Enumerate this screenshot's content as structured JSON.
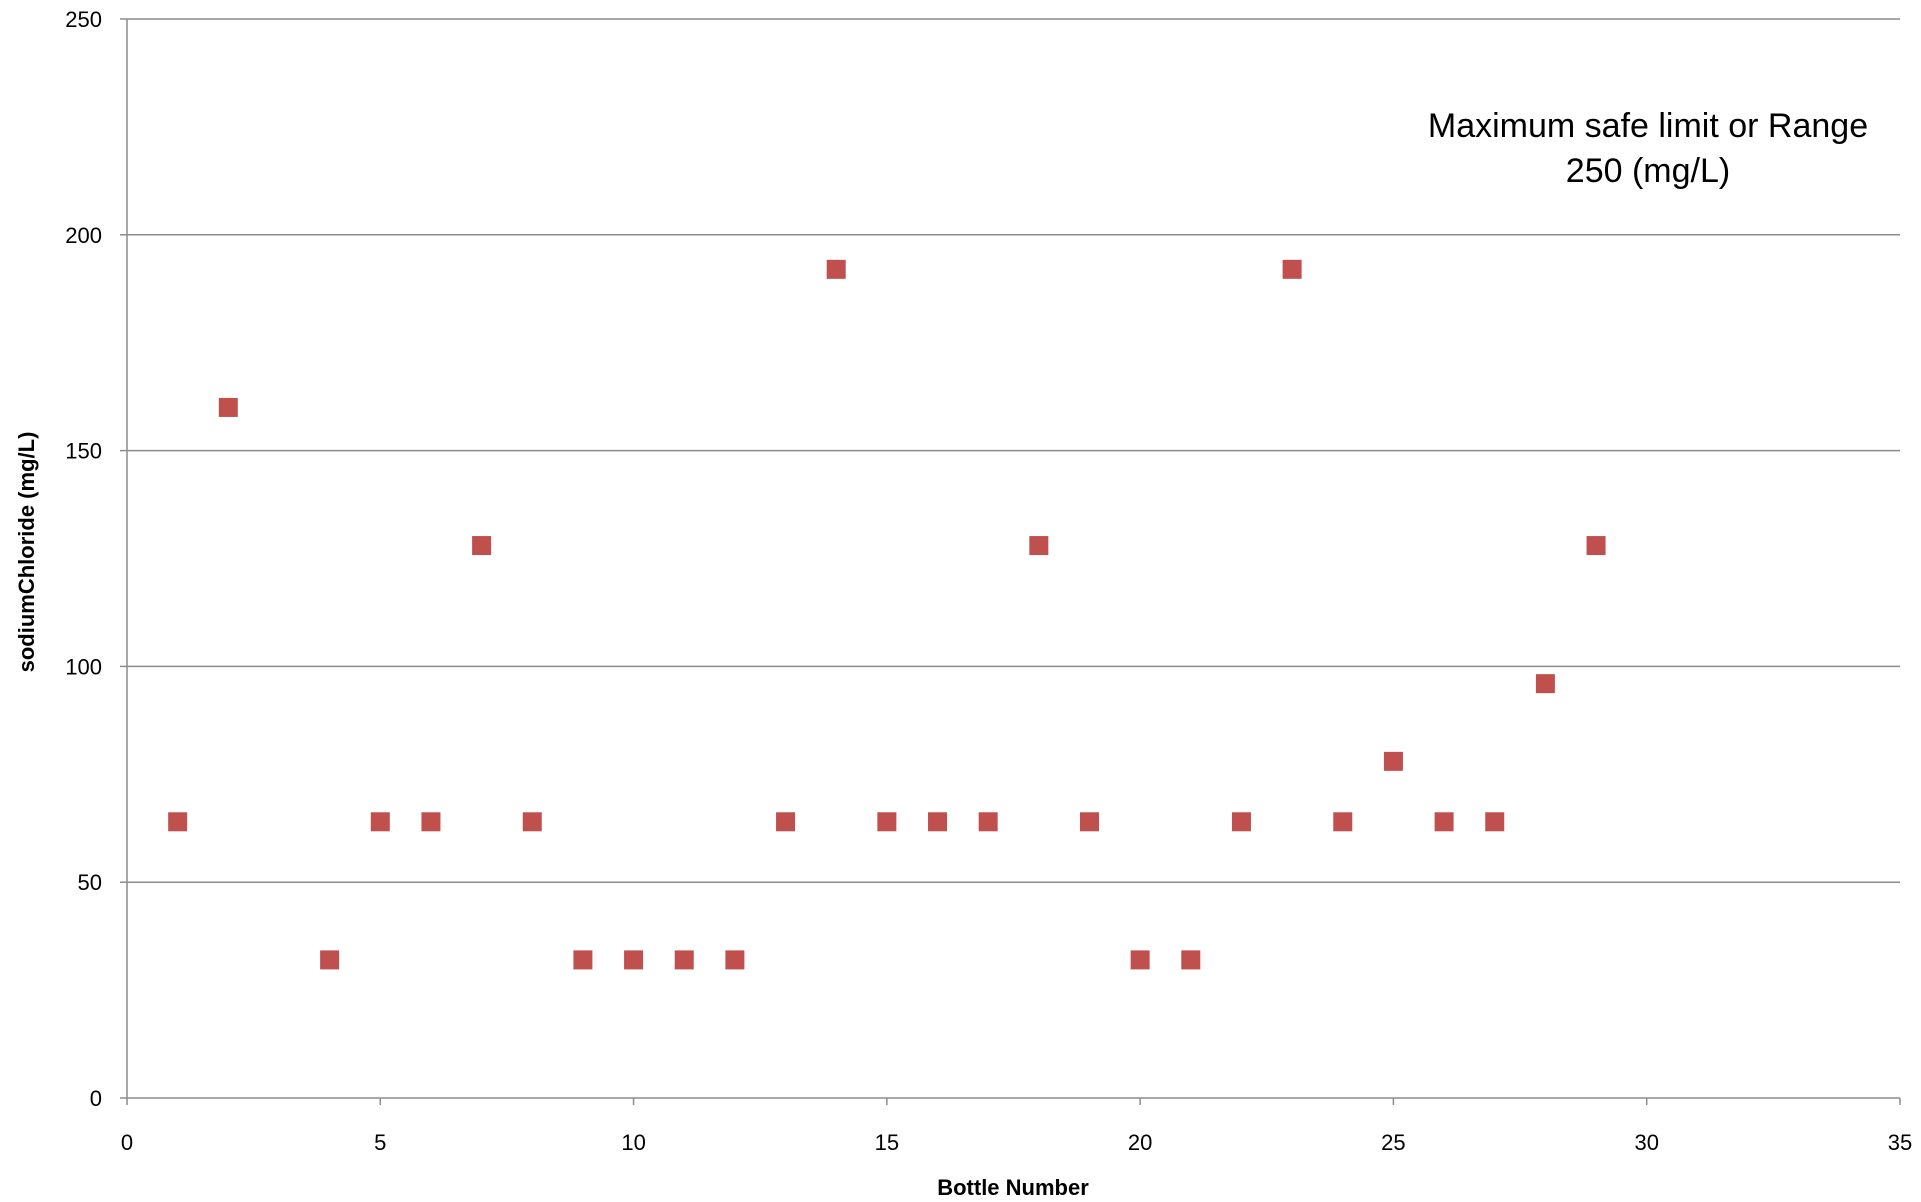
{
  "chart_data": {
    "type": "scatter",
    "title": "",
    "xlabel": "Bottle Number",
    "ylabel": "sodiumChloride (mg/L)",
    "xlim": [
      0,
      35
    ],
    "ylim": [
      0,
      250
    ],
    "x_ticks": [
      0,
      5,
      10,
      15,
      20,
      25,
      30,
      35
    ],
    "y_ticks": [
      0,
      50,
      100,
      150,
      200,
      250
    ],
    "grid": "horizontal",
    "legend": "none",
    "marker": "square",
    "colors": {
      "marker": "#C0504D",
      "grid": "#8c8c8c",
      "axis": "#8c8c8c"
    },
    "annotation": [
      "Maximum safe limit or Range",
      "250 (mg/L)"
    ],
    "series": [
      {
        "x": [
          1,
          2,
          4,
          5,
          6,
          7,
          8,
          9,
          10,
          11,
          12,
          13,
          14,
          15,
          16,
          17,
          18,
          19,
          20,
          21,
          22,
          23,
          24,
          25,
          26,
          27,
          28,
          29
        ],
        "y": [
          64,
          160,
          32,
          64,
          64,
          128,
          64,
          32,
          32,
          32,
          32,
          64,
          192,
          64,
          64,
          64,
          128,
          64,
          32,
          32,
          64,
          192,
          64,
          78,
          64,
          64,
          96,
          128
        ]
      }
    ]
  }
}
